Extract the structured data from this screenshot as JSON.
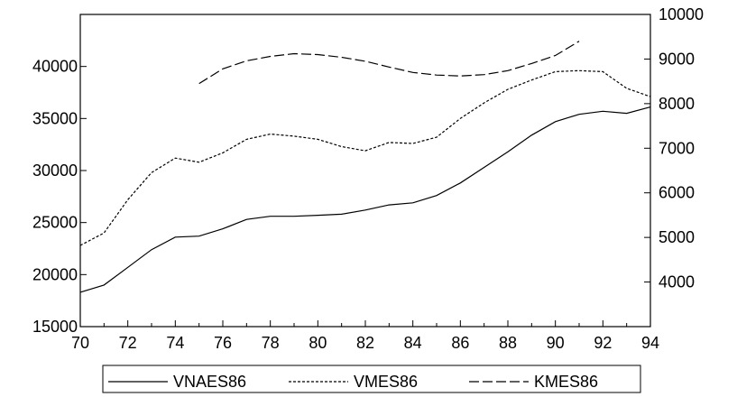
{
  "chart_data": {
    "type": "line",
    "title": "",
    "xlabel": "",
    "ylabel_left": "",
    "ylabel_right": "",
    "x": [
      70,
      71,
      72,
      73,
      74,
      75,
      76,
      77,
      78,
      79,
      80,
      81,
      82,
      83,
      84,
      85,
      86,
      87,
      88,
      89,
      90,
      91,
      92,
      93,
      94
    ],
    "xlim": [
      70,
      94
    ],
    "x_ticks": [
      70,
      72,
      74,
      76,
      78,
      80,
      82,
      84,
      86,
      88,
      90,
      92,
      94
    ],
    "y_left": {
      "ylim": [
        15000,
        45000
      ],
      "ticks": [
        15000,
        20000,
        25000,
        30000,
        35000,
        40000
      ]
    },
    "y_right": {
      "ylim": [
        3000,
        10000
      ],
      "ticks": [
        4000,
        5000,
        6000,
        7000,
        8000,
        9000,
        10000
      ]
    },
    "series": [
      {
        "name": "VNAES86",
        "axis": "left",
        "style": "solid",
        "x": [
          70,
          71,
          72,
          73,
          74,
          75,
          76,
          77,
          78,
          79,
          80,
          81,
          82,
          83,
          84,
          85,
          86,
          87,
          88,
          89,
          90,
          91,
          92,
          93,
          94
        ],
        "values": [
          18300,
          19000,
          20700,
          22400,
          23600,
          23700,
          24400,
          25300,
          25600,
          25600,
          25700,
          25800,
          26200,
          26700,
          26900,
          27600,
          28800,
          30300,
          31800,
          33400,
          34700,
          35400,
          35700,
          35500,
          36100
        ]
      },
      {
        "name": "VMES86",
        "axis": "left",
        "style": "dotted",
        "x": [
          70,
          71,
          72,
          73,
          74,
          75,
          76,
          77,
          78,
          79,
          80,
          81,
          82,
          83,
          84,
          85,
          86,
          87,
          88,
          89,
          90,
          91,
          92,
          93,
          94
        ],
        "values": [
          22800,
          24000,
          27200,
          29800,
          31200,
          30800,
          31700,
          33000,
          33500,
          33300,
          33000,
          32300,
          31900,
          32700,
          32600,
          33200,
          35000,
          36500,
          37800,
          38700,
          39500,
          39600,
          39500,
          37900,
          37100
        ]
      },
      {
        "name": "KMES86",
        "axis": "right",
        "style": "dashed",
        "x": [
          75,
          76,
          77,
          78,
          79,
          80,
          81,
          82,
          83,
          84,
          85,
          86,
          87,
          88,
          89,
          90,
          91
        ],
        "values": [
          8450,
          8780,
          8960,
          9060,
          9120,
          9100,
          9040,
          8950,
          8820,
          8700,
          8640,
          8620,
          8650,
          8740,
          8900,
          9080,
          9400
        ]
      }
    ],
    "legend_position": "bottom-center",
    "grid": false
  }
}
